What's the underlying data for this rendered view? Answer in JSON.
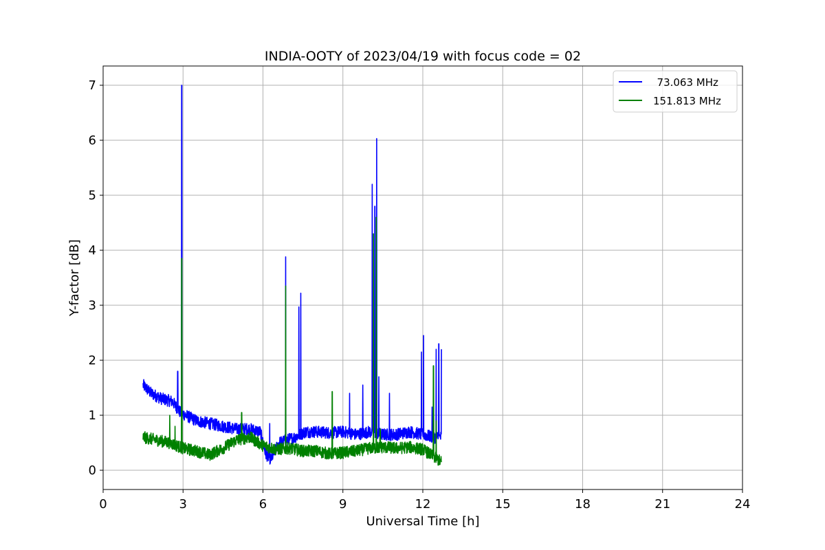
{
  "chart_data": {
    "type": "line",
    "title": "INDIA-OOTY of 2023/04/19 with focus code = 02",
    "xlabel": "Universal Time [h]",
    "ylabel": "Y-factor [dB]",
    "xlim": [
      0,
      24
    ],
    "ylim": [
      -0.35,
      7.35
    ],
    "xticks": [
      0,
      3,
      6,
      9,
      12,
      15,
      18,
      21,
      24
    ],
    "yticks": [
      0,
      1,
      2,
      3,
      4,
      5,
      6,
      7
    ],
    "grid": true,
    "legend_position": "top-right",
    "series": [
      {
        "name": "  73.063 MHz",
        "color": "#0000ff",
        "base": [
          [
            1.5,
            1.55
          ],
          [
            1.8,
            1.4
          ],
          [
            2.2,
            1.3
          ],
          [
            2.6,
            1.25
          ],
          [
            2.9,
            1.05
          ],
          [
            3.1,
            1.0
          ],
          [
            3.5,
            0.9
          ],
          [
            4.0,
            0.85
          ],
          [
            4.5,
            0.8
          ],
          [
            5.0,
            0.75
          ],
          [
            5.5,
            0.75
          ],
          [
            5.9,
            0.7
          ],
          [
            6.1,
            0.3
          ],
          [
            6.3,
            0.2
          ],
          [
            6.6,
            0.5
          ],
          [
            6.9,
            0.55
          ],
          [
            7.2,
            0.6
          ],
          [
            7.6,
            0.7
          ],
          [
            8.0,
            0.7
          ],
          [
            8.5,
            0.68
          ],
          [
            9.0,
            0.7
          ],
          [
            9.5,
            0.65
          ],
          [
            10.0,
            0.7
          ],
          [
            10.5,
            0.65
          ],
          [
            11.0,
            0.65
          ],
          [
            11.5,
            0.7
          ],
          [
            12.0,
            0.65
          ],
          [
            12.4,
            0.6
          ],
          [
            12.7,
            0.6
          ]
        ],
        "spikes": [
          [
            2.8,
            1.8
          ],
          [
            2.95,
            7.0
          ],
          [
            6.25,
            0.85
          ],
          [
            6.85,
            3.88
          ],
          [
            7.35,
            2.97
          ],
          [
            7.42,
            3.22
          ],
          [
            9.25,
            1.4
          ],
          [
            9.75,
            1.55
          ],
          [
            10.1,
            5.2
          ],
          [
            10.2,
            4.8
          ],
          [
            10.27,
            6.03
          ],
          [
            10.35,
            1.7
          ],
          [
            10.75,
            1.4
          ],
          [
            11.95,
            2.15
          ],
          [
            12.03,
            2.45
          ],
          [
            12.35,
            1.15
          ],
          [
            12.5,
            2.2
          ],
          [
            12.6,
            2.3
          ],
          [
            12.7,
            2.2
          ]
        ]
      },
      {
        "name": "151.813 MHz",
        "color": "#008000",
        "base": [
          [
            1.5,
            0.6
          ],
          [
            2.0,
            0.55
          ],
          [
            2.5,
            0.5
          ],
          [
            3.0,
            0.4
          ],
          [
            3.5,
            0.35
          ],
          [
            4.0,
            0.28
          ],
          [
            4.5,
            0.4
          ],
          [
            5.0,
            0.55
          ],
          [
            5.5,
            0.6
          ],
          [
            6.0,
            0.45
          ],
          [
            6.5,
            0.38
          ],
          [
            7.0,
            0.4
          ],
          [
            7.5,
            0.35
          ],
          [
            8.0,
            0.35
          ],
          [
            8.5,
            0.3
          ],
          [
            9.0,
            0.32
          ],
          [
            9.5,
            0.35
          ],
          [
            10.0,
            0.4
          ],
          [
            10.5,
            0.42
          ],
          [
            11.0,
            0.4
          ],
          [
            11.5,
            0.42
          ],
          [
            12.0,
            0.38
          ],
          [
            12.4,
            0.25
          ],
          [
            12.7,
            0.15
          ]
        ],
        "spikes": [
          [
            2.5,
            1.0
          ],
          [
            2.7,
            0.8
          ],
          [
            2.95,
            3.85
          ],
          [
            5.2,
            1.05
          ],
          [
            6.85,
            3.35
          ],
          [
            8.6,
            1.43
          ],
          [
            10.15,
            4.3
          ],
          [
            10.25,
            4.6
          ],
          [
            10.4,
            0.75
          ],
          [
            12.4,
            1.9
          ],
          [
            12.5,
            0.9
          ]
        ]
      }
    ]
  }
}
